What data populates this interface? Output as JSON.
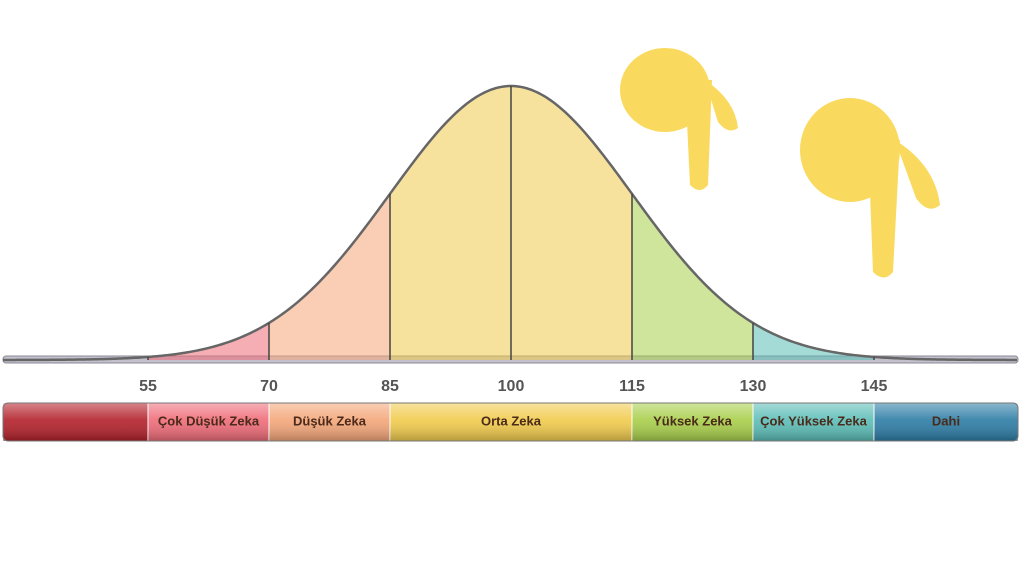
{
  "axis": {
    "ticks": [
      55,
      70,
      85,
      100,
      115,
      130,
      145
    ]
  },
  "bands": [
    {
      "label": null,
      "color": "#b3202a"
    },
    {
      "label": "Çok Düşük Zeka",
      "color": "#ef6b78"
    },
    {
      "label": "Düşük Zeka",
      "color": "#f4a679"
    },
    {
      "label": "Orta Zeka",
      "color": "#f1cb4c"
    },
    {
      "label": "Yüksek Zeka",
      "color": "#a8cf4a"
    },
    {
      "label": "Çok Yüksek Zeka",
      "color": "#5bbdb7"
    },
    {
      "label": "Dahi",
      "color": "#2c7ca5"
    }
  ]
}
